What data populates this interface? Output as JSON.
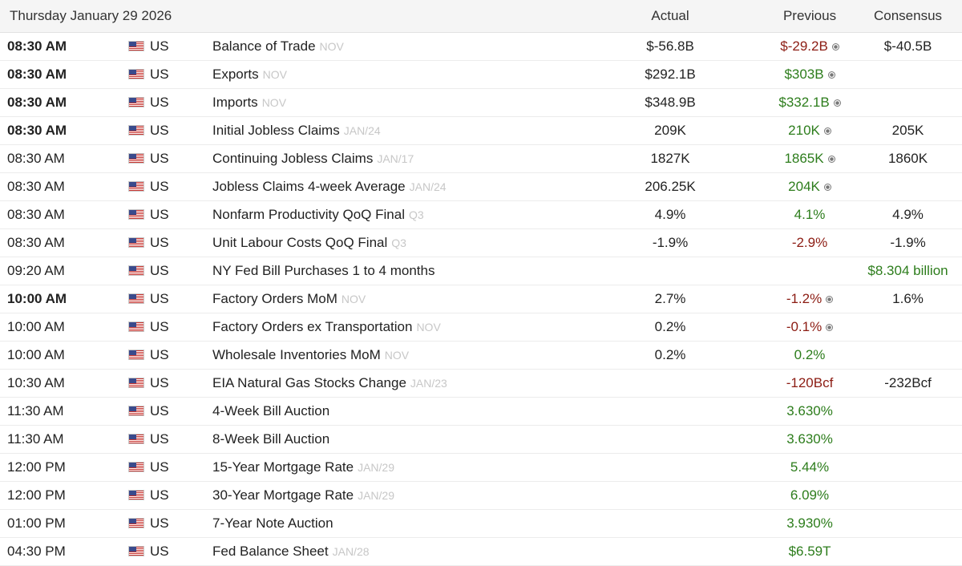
{
  "header": {
    "date": "Thursday January 29 2026",
    "actual_label": "Actual",
    "previous_label": "Previous",
    "consensus_label": "Consensus"
  },
  "colors": {
    "positive": "#2d7d1c",
    "negative": "#8c1c13",
    "reference": "#c7c7c7"
  },
  "rows": [
    {
      "time": "08:30 AM",
      "bold": true,
      "country": "US",
      "event": "Balance of Trade",
      "ref": "NOV",
      "actual": "$-56.8B",
      "previous": "$-29.2B",
      "previous_color": "negative",
      "revised": true,
      "consensus": "$-40.5B"
    },
    {
      "time": "08:30 AM",
      "bold": true,
      "country": "US",
      "event": "Exports",
      "ref": "NOV",
      "actual": "$292.1B",
      "previous": "$303B",
      "previous_color": "positive",
      "revised": true,
      "consensus": ""
    },
    {
      "time": "08:30 AM",
      "bold": true,
      "country": "US",
      "event": "Imports",
      "ref": "NOV",
      "actual": "$348.9B",
      "previous": "$332.1B",
      "previous_color": "positive",
      "revised": true,
      "consensus": ""
    },
    {
      "time": "08:30 AM",
      "bold": true,
      "country": "US",
      "event": "Initial Jobless Claims",
      "ref": "JAN/24",
      "actual": "209K",
      "previous": "210K",
      "previous_color": "positive",
      "revised": true,
      "consensus": "205K"
    },
    {
      "time": "08:30 AM",
      "bold": false,
      "country": "US",
      "event": "Continuing Jobless Claims",
      "ref": "JAN/17",
      "actual": "1827K",
      "previous": "1865K",
      "previous_color": "positive",
      "revised": true,
      "consensus": "1860K"
    },
    {
      "time": "08:30 AM",
      "bold": false,
      "country": "US",
      "event": "Jobless Claims 4-week Average",
      "ref": "JAN/24",
      "actual": "206.25K",
      "previous": "204K",
      "previous_color": "positive",
      "revised": true,
      "consensus": ""
    },
    {
      "time": "08:30 AM",
      "bold": false,
      "country": "US",
      "event": "Nonfarm Productivity QoQ Final",
      "ref": "Q3",
      "actual": "4.9%",
      "previous": "4.1%",
      "previous_color": "positive",
      "revised": false,
      "consensus": "4.9%"
    },
    {
      "time": "08:30 AM",
      "bold": false,
      "country": "US",
      "event": "Unit Labour Costs QoQ Final",
      "ref": "Q3",
      "actual": "-1.9%",
      "previous": "-2.9%",
      "previous_color": "negative",
      "revised": false,
      "consensus": "-1.9%"
    },
    {
      "time": "09:20 AM",
      "bold": false,
      "country": "US",
      "event": "NY Fed Bill Purchases 1 to 4 months",
      "ref": "",
      "actual": "",
      "previous": "",
      "previous_color": "positive",
      "revised": false,
      "consensus": "$8.304 billion",
      "consensus_color": "positive"
    },
    {
      "time": "10:00 AM",
      "bold": true,
      "country": "US",
      "event": "Factory Orders MoM",
      "ref": "NOV",
      "actual": "2.7%",
      "previous": "-1.2%",
      "previous_color": "negative",
      "revised": true,
      "consensus": "1.6%"
    },
    {
      "time": "10:00 AM",
      "bold": false,
      "country": "US",
      "event": "Factory Orders ex Transportation",
      "ref": "NOV",
      "actual": "0.2%",
      "previous": "-0.1%",
      "previous_color": "negative",
      "revised": true,
      "consensus": ""
    },
    {
      "time": "10:00 AM",
      "bold": false,
      "country": "US",
      "event": "Wholesale Inventories MoM",
      "ref": "NOV",
      "actual": "0.2%",
      "previous": "0.2%",
      "previous_color": "positive",
      "revised": false,
      "consensus": ""
    },
    {
      "time": "10:30 AM",
      "bold": false,
      "country": "US",
      "event": "EIA Natural Gas Stocks Change",
      "ref": "JAN/23",
      "actual": "",
      "previous": "-120Bcf",
      "previous_color": "negative",
      "revised": false,
      "consensus": "-232Bcf"
    },
    {
      "time": "11:30 AM",
      "bold": false,
      "country": "US",
      "event": "4-Week Bill Auction",
      "ref": "",
      "actual": "",
      "previous": "3.630%",
      "previous_color": "positive",
      "revised": false,
      "consensus": ""
    },
    {
      "time": "11:30 AM",
      "bold": false,
      "country": "US",
      "event": "8-Week Bill Auction",
      "ref": "",
      "actual": "",
      "previous": "3.630%",
      "previous_color": "positive",
      "revised": false,
      "consensus": ""
    },
    {
      "time": "12:00 PM",
      "bold": false,
      "country": "US",
      "event": "15-Year Mortgage Rate",
      "ref": "JAN/29",
      "actual": "",
      "previous": "5.44%",
      "previous_color": "positive",
      "revised": false,
      "consensus": ""
    },
    {
      "time": "12:00 PM",
      "bold": false,
      "country": "US",
      "event": "30-Year Mortgage Rate",
      "ref": "JAN/29",
      "actual": "",
      "previous": "6.09%",
      "previous_color": "positive",
      "revised": false,
      "consensus": ""
    },
    {
      "time": "01:00 PM",
      "bold": false,
      "country": "US",
      "event": "7-Year Note Auction",
      "ref": "",
      "actual": "",
      "previous": "3.930%",
      "previous_color": "positive",
      "revised": false,
      "consensus": ""
    },
    {
      "time": "04:30 PM",
      "bold": false,
      "country": "US",
      "event": "Fed Balance Sheet",
      "ref": "JAN/28",
      "actual": "",
      "previous": "$6.59T",
      "previous_color": "positive",
      "revised": false,
      "consensus": ""
    }
  ]
}
